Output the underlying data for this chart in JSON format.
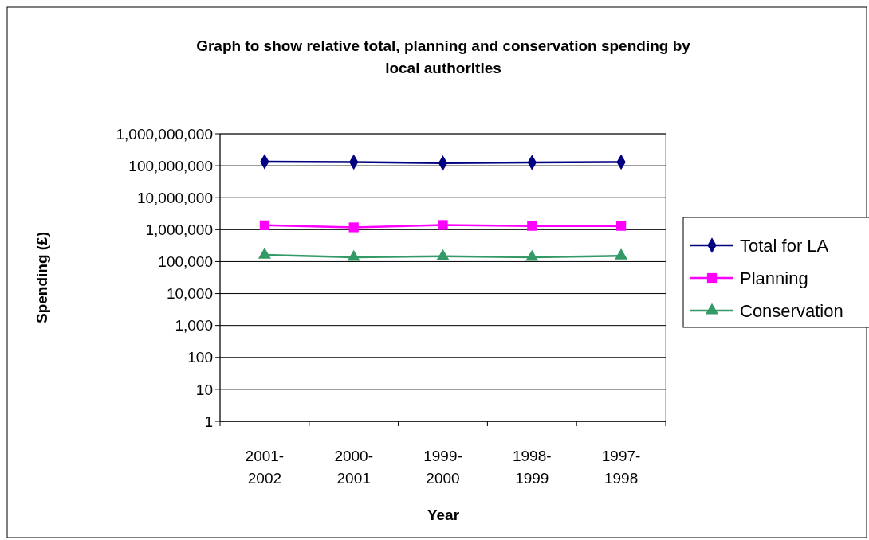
{
  "chart_data": {
    "type": "line",
    "title": "Graph to show relative total, planning and conservation spending by local authorities",
    "xlabel": "Year",
    "ylabel": "Spending (£)",
    "categories": [
      "2001-\n2002",
      "2000-\n2001",
      "1999-\n2000",
      "1998-\n1999",
      "1997-\n1998"
    ],
    "series": [
      {
        "name": "Total for LA",
        "color": "#000080",
        "marker": "diamond",
        "values": [
          134000000,
          131000000,
          121000000,
          126000000,
          131000000
        ]
      },
      {
        "name": "Planning",
        "color": "#ff00ff",
        "marker": "square",
        "values": [
          1370000,
          1180000,
          1400000,
          1310000,
          1310000
        ]
      },
      {
        "name": "Conservation",
        "color": "#339966",
        "marker": "triangle",
        "values": [
          162000,
          137000,
          146000,
          137000,
          152000
        ]
      }
    ],
    "log": true,
    "ylim": [
      1,
      1000000000
    ],
    "yticks": [
      {
        "value": 1,
        "label": "1"
      },
      {
        "value": 10,
        "label": "10"
      },
      {
        "value": 100,
        "label": "100"
      },
      {
        "value": 1000,
        "label": "1,000"
      },
      {
        "value": 10000,
        "label": "10,000"
      },
      {
        "value": 100000,
        "label": "100,000"
      },
      {
        "value": 1000000,
        "label": "1,000,000"
      },
      {
        "value": 10000000,
        "label": "10,000,000"
      },
      {
        "value": 100000000,
        "label": "100,000,000"
      },
      {
        "value": 1000000000,
        "label": "1,000,000,000"
      }
    ],
    "grid": "y",
    "legend": "right"
  }
}
